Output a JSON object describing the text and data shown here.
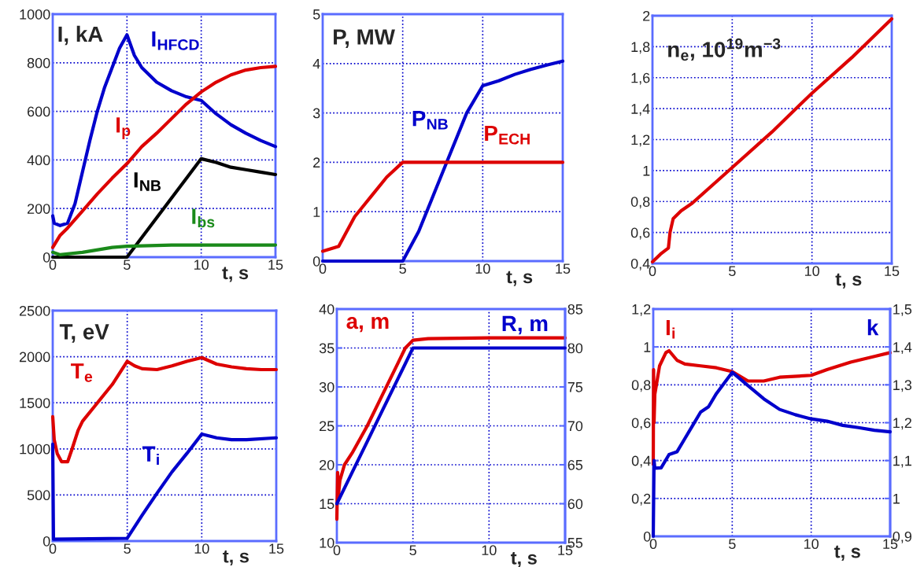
{
  "chart_data": [
    {
      "type": "line",
      "title": "I, kA",
      "xlabel": "t, s",
      "xlim": [
        0,
        15
      ],
      "xticks": [
        0,
        5,
        10,
        15
      ],
      "ylim": [
        0,
        1000
      ],
      "yticks": [
        0,
        200,
        400,
        600,
        800,
        1000
      ],
      "grid": true,
      "series": [
        {
          "name": "I$_{HFCD}$",
          "color": "#0000cc",
          "x": [
            0,
            0.1,
            0.5,
            1,
            1.5,
            2,
            2.5,
            3,
            3.5,
            4,
            4.5,
            5,
            5.5,
            6,
            7,
            8,
            9,
            10,
            11,
            12,
            13,
            14,
            15
          ],
          "values": [
            170,
            140,
            130,
            140,
            220,
            350,
            480,
            600,
            700,
            780,
            860,
            915,
            830,
            780,
            720,
            685,
            660,
            645,
            590,
            545,
            510,
            480,
            455
          ]
        },
        {
          "name": "I$_{p}$",
          "color": "#dd0000",
          "x": [
            0,
            0.5,
            1,
            2,
            3,
            4,
            5,
            6,
            7,
            8,
            9,
            10,
            11,
            12,
            13,
            14,
            15
          ],
          "values": [
            40,
            90,
            120,
            190,
            260,
            325,
            385,
            455,
            510,
            570,
            630,
            680,
            720,
            750,
            770,
            780,
            785
          ]
        },
        {
          "name": "I$_{NB}$",
          "color": "#000000",
          "x": [
            0,
            5,
            10,
            11,
            12,
            13,
            14,
            15
          ],
          "values": [
            0,
            0,
            405,
            390,
            370,
            360,
            350,
            340
          ]
        },
        {
          "name": "I$_{bs}$",
          "color": "#1a8a1a",
          "x": [
            0,
            0.5,
            2,
            4,
            5,
            8,
            10,
            15
          ],
          "values": [
            20,
            10,
            20,
            40,
            45,
            50,
            50,
            50
          ]
        }
      ]
    },
    {
      "type": "line",
      "title": "P, MW",
      "xlabel": "t, s",
      "xlim": [
        0,
        15
      ],
      "xticks": [
        0,
        5,
        10,
        15
      ],
      "ylim": [
        0,
        5
      ],
      "yticks": [
        0,
        1,
        2,
        3,
        4,
        5
      ],
      "grid": true,
      "series": [
        {
          "name": "P$_{NB}$",
          "color": "#0000cc",
          "x": [
            0,
            5,
            6,
            7,
            8,
            9,
            10,
            11,
            12,
            13,
            14,
            15
          ],
          "values": [
            0,
            0,
            0.6,
            1.4,
            2.2,
            3.0,
            3.55,
            3.65,
            3.78,
            3.88,
            3.97,
            4.05
          ]
        },
        {
          "name": "P$_{ECH}$",
          "color": "#dd0000",
          "x": [
            0,
            1,
            2,
            3,
            4,
            5,
            15
          ],
          "values": [
            0.2,
            0.3,
            0.9,
            1.3,
            1.7,
            2.0,
            2.0
          ]
        }
      ]
    },
    {
      "type": "line",
      "title": "n$_{e}$, 10$^{19}$m$^{−3}$",
      "xlabel": "t, s",
      "xlim": [
        0,
        15
      ],
      "xticks": [
        0,
        5,
        10,
        15
      ],
      "ylim": [
        0.4,
        2
      ],
      "yticks": [
        {
          "value": 0.4,
          "label": "0,4"
        },
        {
          "value": 0.6,
          "label": "0,6"
        },
        {
          "value": 0.8,
          "label": "0,8"
        },
        1,
        {
          "value": 1.2,
          "label": "1,2"
        },
        {
          "value": 1.4,
          "label": "1,4"
        },
        {
          "value": 1.6,
          "label": "1,6"
        },
        {
          "value": 1.8,
          "label": "1,8"
        },
        2
      ],
      "grid": true,
      "series": [
        {
          "color": "#dd0000",
          "x": [
            0,
            0.5,
            1,
            1.1,
            1.3,
            1.8,
            2.5,
            5,
            7.5,
            10,
            12.5,
            15
          ],
          "values": [
            0.41,
            0.46,
            0.5,
            0.6,
            0.69,
            0.74,
            0.79,
            1.02,
            1.25,
            1.5,
            1.73,
            1.98
          ]
        }
      ]
    },
    {
      "type": "line",
      "title": "T, eV",
      "xlabel": "t, s",
      "xlim": [
        0,
        15
      ],
      "xticks": [
        0,
        5,
        10,
        15
      ],
      "ylim": [
        0,
        2500
      ],
      "yticks": [
        0,
        500,
        1000,
        1500,
        2000,
        2500
      ],
      "grid": true,
      "series": [
        {
          "name": "T$_{e}$",
          "color": "#dd0000",
          "x": [
            0,
            0.1,
            0.3,
            0.6,
            1,
            1.3,
            1.7,
            2,
            3,
            4,
            5,
            5.5,
            6,
            7,
            8,
            9,
            10,
            11,
            12,
            13,
            14,
            15
          ],
          "values": [
            1350,
            1100,
            950,
            860,
            860,
            1000,
            1200,
            1300,
            1500,
            1700,
            1950,
            1900,
            1870,
            1860,
            1900,
            1950,
            1990,
            1920,
            1890,
            1870,
            1860,
            1860
          ]
        },
        {
          "name": "T$_{i}$",
          "color": "#0000cc",
          "x": [
            0,
            0.05,
            5,
            6,
            7,
            8,
            9,
            10,
            11,
            12,
            13,
            15
          ],
          "values": [
            1050,
            20,
            30,
            280,
            520,
            750,
            950,
            1160,
            1120,
            1100,
            1100,
            1120
          ]
        }
      ]
    },
    {
      "type": "line",
      "xlabel": "t, s",
      "xlim": [
        0,
        15
      ],
      "xticks": [
        0,
        5,
        10,
        15
      ],
      "ylim": [
        10,
        40
      ],
      "yticks": [
        10,
        15,
        20,
        25,
        30,
        35,
        40
      ],
      "y2lim": [
        55,
        85
      ],
      "y2ticks": [
        55,
        60,
        65,
        70,
        75,
        80,
        85
      ],
      "grid": true,
      "series": [
        {
          "name": "a, m",
          "color": "#dd0000",
          "x": [
            0,
            0.05,
            0.1,
            0.2,
            0.5,
            1,
            2,
            3,
            4,
            4.5,
            5,
            6,
            10,
            15
          ],
          "values": [
            13,
            19,
            16,
            18,
            20,
            21.5,
            25,
            29,
            33,
            35,
            36,
            36.2,
            36.3,
            36.3
          ]
        },
        {
          "name": "R, m",
          "color": "#0000cc",
          "axis": "y2",
          "x": [
            0,
            1,
            2,
            3,
            4,
            5,
            15
          ],
          "values": [
            60,
            64,
            68,
            72,
            76,
            80,
            80
          ]
        }
      ]
    },
    {
      "type": "line",
      "xlabel": "t, s",
      "xlim": [
        0,
        15
      ],
      "xticks": [
        0,
        5,
        10,
        15
      ],
      "ylim": [
        0,
        1.2
      ],
      "yticks": [
        0,
        {
          "value": 0.2,
          "label": "0,2"
        },
        {
          "value": 0.4,
          "label": "0,4"
        },
        {
          "value": 0.6,
          "label": "0,6"
        },
        {
          "value": 0.8,
          "label": "0,8"
        },
        1,
        {
          "value": 1.2,
          "label": "1,2"
        }
      ],
      "y2lim": [
        0.9,
        1.5
      ],
      "y2ticks": [
        {
          "value": 0.9,
          "label": "0,9"
        },
        1,
        {
          "value": 1.1,
          "label": "1,1"
        },
        {
          "value": 1.2,
          "label": "1,2"
        },
        {
          "value": 1.3,
          "label": "1,3"
        },
        {
          "value": 1.4,
          "label": "1,4"
        },
        {
          "value": 1.5,
          "label": "1,5"
        }
      ],
      "grid": true,
      "series": [
        {
          "name": "I$_{i}$",
          "color": "#dd0000",
          "x": [
            0,
            0.02,
            0.05,
            0.1,
            0.4,
            0.8,
            1,
            1.5,
            2,
            3,
            4,
            5,
            6,
            7,
            8,
            10,
            11,
            12.5,
            14,
            15
          ],
          "values": [
            0.38,
            0.88,
            0.6,
            0.75,
            0.9,
            0.97,
            0.98,
            0.93,
            0.91,
            0.9,
            0.89,
            0.87,
            0.82,
            0.82,
            0.84,
            0.85,
            0.88,
            0.92,
            0.95,
            0.97
          ]
        },
        {
          "name": "k",
          "color": "#0000cc",
          "axis": "y2",
          "x": [
            0,
            0.05,
            0.1,
            0.5,
            1,
            1.5,
            2,
            2.5,
            3,
            3.5,
            4,
            4.5,
            5,
            6,
            7,
            8,
            9,
            10,
            11,
            12,
            13,
            14,
            15
          ],
          "values": [
            0.9,
            1.1,
            1.08,
            1.081,
            1.116,
            1.123,
            1.158,
            1.193,
            1.228,
            1.242,
            1.277,
            1.305,
            1.333,
            1.298,
            1.263,
            1.235,
            1.221,
            1.21,
            1.204,
            1.193,
            1.187,
            1.18,
            1.176
          ]
        }
      ]
    }
  ]
}
